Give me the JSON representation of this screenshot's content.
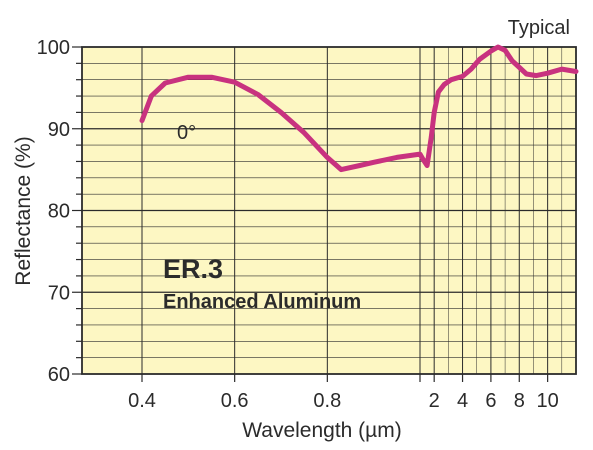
{
  "chart_data": {
    "type": "line",
    "corner_note": "Typical",
    "xlabel": "Wavelength (µm)",
    "ylabel": "Reflectance (%)",
    "ylim": [
      60,
      100
    ],
    "y_ticks": [
      "60",
      "70",
      "80",
      "90",
      "100"
    ],
    "x_tick_labels": [
      "0.4",
      "0.6",
      "0.8",
      "2",
      "4",
      "6",
      "8",
      "10"
    ],
    "x_scale": "broken (0.4–1.0 µm linear, 1–12 µm linear, compressed)",
    "grid": true,
    "background_color": "#fdf7c3",
    "line_color": "#c8327f",
    "annotations": {
      "title": "ER.3",
      "subtitle": "Enhanced Aluminum",
      "angle_label": "0°"
    },
    "series": [
      {
        "x": [
          0.4,
          0.42,
          0.45,
          0.5,
          0.55,
          0.6,
          0.65,
          0.7,
          0.75,
          0.8,
          0.83,
          0.87,
          0.9,
          0.95,
          1.0,
          1.2,
          1.5,
          1.8,
          2.0,
          2.3,
          2.7,
          3.2,
          4.0,
          4.6,
          5.2,
          6.0,
          6.5,
          7.0,
          7.5,
          8.0,
          8.5,
          9.2,
          10.0,
          11.0,
          12.0
        ],
        "y": [
          91.0,
          94.0,
          95.6,
          96.3,
          96.3,
          95.7,
          94.2,
          92.0,
          89.5,
          86.5,
          85.0,
          85.5,
          85.9,
          86.5,
          86.9,
          86.3,
          85.5,
          89.0,
          92.0,
          94.5,
          95.4,
          96.0,
          96.4,
          97.3,
          98.5,
          99.5,
          100.0,
          99.6,
          98.3,
          97.5,
          96.7,
          96.5,
          96.8,
          97.3,
          97.0
        ]
      }
    ]
  }
}
